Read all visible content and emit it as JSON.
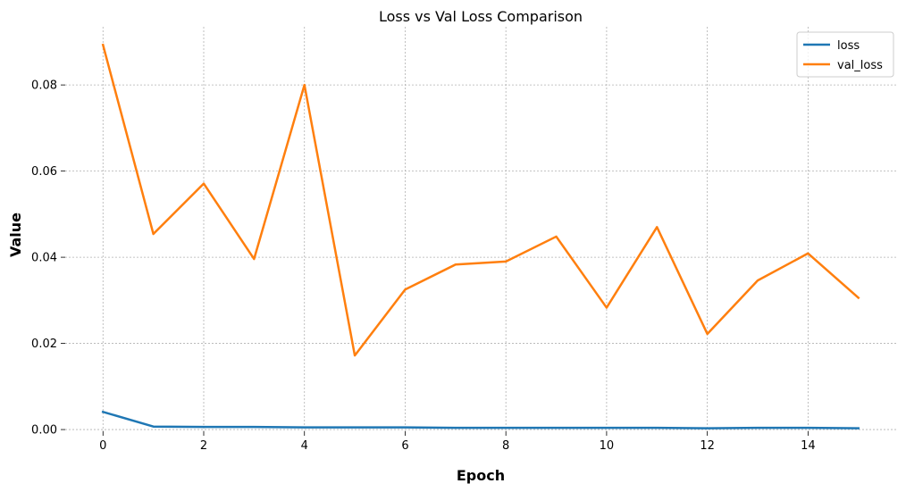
{
  "chart_data": {
    "type": "line",
    "title": "Loss vs Val Loss Comparison",
    "xlabel": "Epoch",
    "ylabel": "Value",
    "x": [
      0,
      1,
      2,
      3,
      4,
      5,
      6,
      7,
      8,
      9,
      10,
      11,
      12,
      13,
      14,
      15
    ],
    "series": [
      {
        "name": "loss",
        "color": "#1f77b4",
        "values": [
          0.0041,
          0.0007,
          0.0006,
          0.0006,
          0.0005,
          0.0005,
          0.0005,
          0.0004,
          0.0004,
          0.0004,
          0.0004,
          0.0004,
          0.0003,
          0.0004,
          0.0004,
          0.0003
        ]
      },
      {
        "name": "val_loss",
        "color": "#ff7f0e",
        "values": [
          0.0893,
          0.0454,
          0.0571,
          0.0396,
          0.08,
          0.0172,
          0.0325,
          0.0383,
          0.039,
          0.0448,
          0.0283,
          0.047,
          0.0222,
          0.0346,
          0.0409,
          0.0306
        ]
      }
    ],
    "xlim": [
      -0.75,
      15.75
    ],
    "ylim": [
      -0.0004,
      0.0935
    ],
    "xticks": [
      0,
      2,
      4,
      6,
      8,
      10,
      12,
      14
    ],
    "xtick_labels": [
      "0",
      "2",
      "4",
      "6",
      "8",
      "10",
      "12",
      "14"
    ],
    "yticks": [
      0.0,
      0.02,
      0.04,
      0.06,
      0.08
    ],
    "ytick_labels": [
      "0.00",
      "0.02",
      "0.04",
      "0.06",
      "0.08"
    ],
    "grid": true,
    "legend_position": "top-right"
  }
}
